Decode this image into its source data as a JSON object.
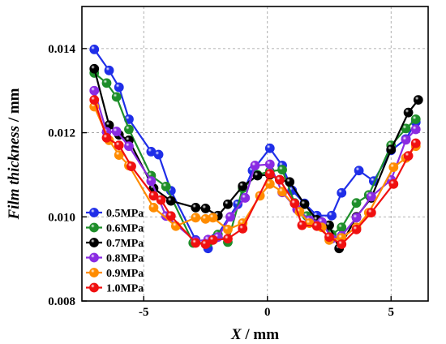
{
  "chart_data": {
    "type": "line",
    "xlabel_var": "X",
    "xlabel_unit": " / mm",
    "ylabel_var": "Film thickness",
    "ylabel_unit": " / mm",
    "xlim": [
      -7.5,
      6.5
    ],
    "ylim": [
      0.008,
      0.015
    ],
    "xticks": [
      -5,
      0,
      5
    ],
    "xtick_labels": [
      "-5",
      "0",
      "5"
    ],
    "yticks": [
      0.008,
      0.01,
      0.012,
      0.014
    ],
    "ytick_labels": [
      "0.008",
      "0.010",
      "0.012",
      "0.014"
    ],
    "grid": true,
    "legend_position": "lower-left",
    "series": [
      {
        "name": "0.5MPa",
        "color": "#1f2ee8",
        "x": [
          -7.0,
          -6.4,
          -6.0,
          -5.6,
          -4.7,
          -4.4,
          -3.9,
          -2.9,
          -2.4,
          -2.1,
          -1.2,
          -0.6,
          0.1,
          0.6,
          1.0,
          1.5,
          2.0,
          2.6,
          3.0,
          3.7,
          4.3,
          5.0,
          5.6,
          6.0
        ],
        "y": [
          0.01398,
          0.01348,
          0.01308,
          0.01232,
          0.01155,
          0.01148,
          0.01062,
          0.00945,
          0.00925,
          0.0095,
          0.0103,
          0.0111,
          0.01163,
          0.01122,
          0.01063,
          0.01032,
          0.01003,
          0.01003,
          0.01057,
          0.0111,
          0.01085,
          0.01158,
          0.01185,
          0.01225
        ]
      },
      {
        "name": "0.6MPa",
        "color": "#1e8e2a",
        "x": [
          -7.0,
          -6.5,
          -6.1,
          -5.6,
          -4.7,
          -4.1,
          -3.0,
          -2.4,
          -2.0,
          -1.6,
          -1.0,
          -0.4,
          0.1,
          0.6,
          1.1,
          1.6,
          2.2,
          2.6,
          3.0,
          3.6,
          4.1,
          5.0,
          5.6,
          6.0
        ],
        "y": [
          0.01342,
          0.01318,
          0.01285,
          0.01208,
          0.01098,
          0.01072,
          0.00938,
          0.00938,
          0.00958,
          0.0094,
          0.01068,
          0.011,
          0.01108,
          0.01112,
          0.01033,
          0.01002,
          0.00985,
          0.00958,
          0.00975,
          0.01033,
          0.01052,
          0.0117,
          0.0121,
          0.01232
        ]
      },
      {
        "name": "0.7MPa",
        "color": "#000000",
        "x": [
          -7.0,
          -6.4,
          -6.0,
          -5.6,
          -4.6,
          -3.9,
          -2.9,
          -2.5,
          -2.0,
          -1.6,
          -1.0,
          -0.4,
          0.1,
          0.5,
          0.9,
          1.5,
          2.0,
          2.5,
          2.9,
          3.6,
          4.2,
          5.0,
          5.7,
          6.1
        ],
        "y": [
          0.01352,
          0.01218,
          0.01195,
          0.01182,
          0.01068,
          0.01038,
          0.01022,
          0.0102,
          0.01003,
          0.0103,
          0.01073,
          0.01098,
          0.011,
          0.01088,
          0.01083,
          0.0103,
          0.00993,
          0.0098,
          0.00925,
          0.01,
          0.01045,
          0.0116,
          0.01248,
          0.01278
        ]
      },
      {
        "name": "0.8MPa",
        "color": "#8a2be2",
        "x": [
          -7.0,
          -6.5,
          -6.1,
          -5.6,
          -4.7,
          -4.1,
          -2.9,
          -2.4,
          -2.0,
          -1.5,
          -0.9,
          -0.5,
          0.1,
          0.6,
          1.2,
          1.7,
          2.2,
          2.6,
          3.0,
          3.6,
          4.2,
          5.0,
          5.6,
          6.0
        ],
        "y": [
          0.013,
          0.01202,
          0.01203,
          0.01168,
          0.01085,
          0.01002,
          0.00942,
          0.00946,
          0.00952,
          0.01,
          0.01045,
          0.01122,
          0.01125,
          0.01058,
          0.01018,
          0.00992,
          0.00988,
          0.00948,
          0.00955,
          0.00998,
          0.01048,
          0.01088,
          0.01183,
          0.01208
        ]
      },
      {
        "name": "0.9MPa",
        "color": "#ff8c00",
        "x": [
          -7.0,
          -6.4,
          -6.0,
          -5.6,
          -4.6,
          -3.7,
          -2.9,
          -2.5,
          -2.2,
          -1.6,
          -1.0,
          -0.3,
          0.1,
          0.6,
          1.3,
          1.7,
          2.2,
          2.5,
          3.0,
          3.6,
          4.1,
          5.1,
          5.6,
          6.0
        ],
        "y": [
          0.01262,
          0.01182,
          0.01147,
          0.01122,
          0.01022,
          0.00978,
          0.00998,
          0.00995,
          0.00998,
          0.0097,
          0.00985,
          0.0105,
          0.01078,
          0.0106,
          0.01012,
          0.00985,
          0.00975,
          0.00945,
          0.0095,
          0.00975,
          0.0101,
          0.01118,
          0.0114,
          0.01168
        ]
      },
      {
        "name": "1.0MPa",
        "color": "#f01010",
        "x": [
          -7.0,
          -6.5,
          -6.0,
          -5.5,
          -4.6,
          -4.3,
          -3.9,
          -2.9,
          -2.5,
          -2.2,
          -1.6,
          -1.0,
          0.1,
          0.5,
          1.1,
          1.4,
          2.0,
          2.5,
          3.0,
          3.6,
          4.2,
          5.1,
          5.7,
          6.0
        ],
        "y": [
          0.01278,
          0.01188,
          0.0117,
          0.0112,
          0.0105,
          0.0104,
          0.01002,
          0.00938,
          0.00935,
          0.00945,
          0.00948,
          0.00972,
          0.01102,
          0.01088,
          0.01032,
          0.0098,
          0.00978,
          0.00952,
          0.00935,
          0.0097,
          0.0101,
          0.01078,
          0.01145,
          0.01175
        ]
      }
    ]
  }
}
